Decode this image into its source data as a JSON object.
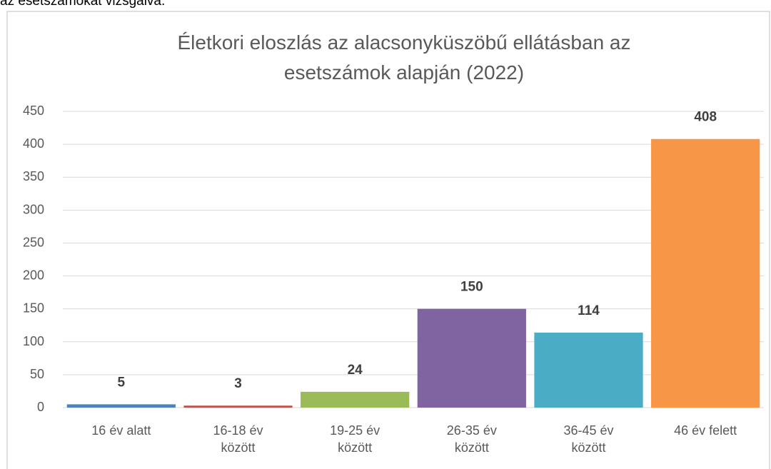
{
  "page_text": "az esetszámokat vizsgálva.",
  "chart_data": {
    "type": "bar",
    "title": "Életkori eloszlás az alacsonyküszöbű ellátásban az\nesetszámok alapján (2022)",
    "categories": [
      "16 év alatt",
      "16-18 év\nközött",
      "19-25 év\nközött",
      "26-35 év\nközött",
      "36-45 év\nközött",
      "46 év felett"
    ],
    "values": [
      5,
      3,
      24,
      150,
      114,
      408
    ],
    "colors": [
      "#4f81bd",
      "#c0504d",
      "#9bbb59",
      "#8064a2",
      "#4bacc6",
      "#f79646"
    ],
    "ylim": [
      0,
      450
    ],
    "yticks": [
      0,
      50,
      100,
      150,
      200,
      250,
      300,
      350,
      400,
      450
    ],
    "grid": true
  }
}
